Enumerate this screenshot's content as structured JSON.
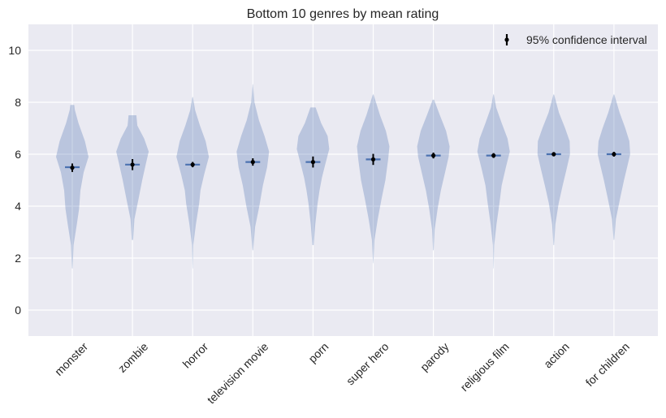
{
  "chart_data": {
    "type": "violin",
    "title": "Bottom 10 genres by mean rating",
    "xlabel": "",
    "ylabel": "",
    "ylim": [
      -1,
      11
    ],
    "yticks": [
      0,
      2,
      4,
      6,
      8,
      10
    ],
    "grid": true,
    "legend": {
      "placement": "top-right",
      "label": "95% confidence interval"
    },
    "colors": {
      "background": "#eaeaf2",
      "grid": "#ffffff",
      "violin": "#4c72b0",
      "median": "#4c72b0",
      "ci": "#000000"
    },
    "categories": [
      "monster",
      "zombie",
      "horror",
      "television movie",
      "porn",
      "super hero",
      "parody",
      "religious film",
      "action",
      "for children"
    ],
    "series": [
      {
        "category": "monster",
        "mean": 5.48,
        "ci": [
          5.38,
          5.58
        ],
        "median": 5.5,
        "min": 1.6,
        "max": 7.9,
        "density": [
          [
            1.6,
            0.02
          ],
          [
            2.5,
            0.08
          ],
          [
            3.3,
            0.28
          ],
          [
            3.9,
            0.42
          ],
          [
            4.6,
            0.5
          ],
          [
            5.3,
            0.7
          ],
          [
            5.9,
            1.0
          ],
          [
            6.5,
            0.78
          ],
          [
            7.2,
            0.38
          ],
          [
            7.7,
            0.16
          ],
          [
            7.9,
            0.12
          ]
        ]
      },
      {
        "category": "zombie",
        "mean": 5.6,
        "ci": [
          5.45,
          5.75
        ],
        "median": 5.6,
        "min": 2.7,
        "max": 7.5,
        "density": [
          [
            2.7,
            0.04
          ],
          [
            3.5,
            0.12
          ],
          [
            4.3,
            0.38
          ],
          [
            5.0,
            0.6
          ],
          [
            5.7,
            0.85
          ],
          [
            6.1,
            1.0
          ],
          [
            6.6,
            0.72
          ],
          [
            7.1,
            0.3
          ],
          [
            7.5,
            0.24
          ]
        ]
      },
      {
        "category": "horror",
        "mean": 5.6,
        "ci": [
          5.56,
          5.64
        ],
        "median": 5.6,
        "min": 1.6,
        "max": 8.2,
        "density": [
          [
            1.6,
            0.01
          ],
          [
            2.5,
            0.04
          ],
          [
            3.3,
            0.2
          ],
          [
            4.1,
            0.4
          ],
          [
            4.6,
            0.48
          ],
          [
            5.2,
            0.7
          ],
          [
            5.9,
            1.0
          ],
          [
            6.5,
            0.8
          ],
          [
            7.1,
            0.45
          ],
          [
            7.7,
            0.15
          ],
          [
            8.2,
            0.02
          ]
        ]
      },
      {
        "category": "television movie",
        "mean": 5.7,
        "ci": [
          5.62,
          5.78
        ],
        "median": 5.7,
        "min": 2.3,
        "max": 8.7,
        "density": [
          [
            2.3,
            0.02
          ],
          [
            3.2,
            0.14
          ],
          [
            4.0,
            0.4
          ],
          [
            4.8,
            0.62
          ],
          [
            5.5,
            0.88
          ],
          [
            6.1,
            1.0
          ],
          [
            6.7,
            0.72
          ],
          [
            7.3,
            0.38
          ],
          [
            8.0,
            0.1
          ],
          [
            8.7,
            0.01
          ]
        ]
      },
      {
        "category": "porn",
        "mean": 5.7,
        "ci": [
          5.55,
          5.85
        ],
        "median": 5.7,
        "min": 2.5,
        "max": 7.8,
        "density": [
          [
            2.5,
            0.04
          ],
          [
            3.3,
            0.14
          ],
          [
            4.1,
            0.28
          ],
          [
            4.6,
            0.4
          ],
          [
            5.1,
            0.55
          ],
          [
            5.6,
            0.75
          ],
          [
            6.2,
            1.0
          ],
          [
            6.7,
            0.9
          ],
          [
            7.2,
            0.5
          ],
          [
            7.8,
            0.16
          ]
        ]
      },
      {
        "category": "super hero",
        "mean": 5.8,
        "ci": [
          5.65,
          5.95
        ],
        "median": 5.8,
        "min": 1.8,
        "max": 8.3,
        "density": [
          [
            1.8,
            0.01
          ],
          [
            2.7,
            0.08
          ],
          [
            3.5,
            0.28
          ],
          [
            4.3,
            0.52
          ],
          [
            5.0,
            0.75
          ],
          [
            5.8,
            0.92
          ],
          [
            6.3,
            1.0
          ],
          [
            6.9,
            0.78
          ],
          [
            7.5,
            0.42
          ],
          [
            8.3,
            0.02
          ]
        ]
      },
      {
        "category": "parody",
        "mean": 5.95,
        "ci": [
          5.9,
          6.0
        ],
        "median": 5.95,
        "min": 2.3,
        "max": 8.1,
        "density": [
          [
            2.3,
            0.02
          ],
          [
            3.1,
            0.08
          ],
          [
            3.9,
            0.26
          ],
          [
            4.6,
            0.46
          ],
          [
            5.3,
            0.72
          ],
          [
            5.9,
            0.94
          ],
          [
            6.3,
            1.0
          ],
          [
            6.9,
            0.78
          ],
          [
            7.5,
            0.4
          ],
          [
            8.1,
            0.04
          ]
        ]
      },
      {
        "category": "religious film",
        "mean": 5.95,
        "ci": [
          5.92,
          5.98
        ],
        "median": 5.95,
        "min": 1.6,
        "max": 8.3,
        "density": [
          [
            1.6,
            0.01
          ],
          [
            2.5,
            0.04
          ],
          [
            3.3,
            0.18
          ],
          [
            4.1,
            0.36
          ],
          [
            4.8,
            0.5
          ],
          [
            5.5,
            0.76
          ],
          [
            6.1,
            1.0
          ],
          [
            6.6,
            0.86
          ],
          [
            7.2,
            0.5
          ],
          [
            7.8,
            0.16
          ],
          [
            8.3,
            0.02
          ]
        ]
      },
      {
        "category": "action",
        "mean": 6.0,
        "ci": [
          5.98,
          6.02
        ],
        "median": 6.0,
        "min": 2.5,
        "max": 8.3,
        "density": [
          [
            2.5,
            0.02
          ],
          [
            3.3,
            0.1
          ],
          [
            4.1,
            0.3
          ],
          [
            4.8,
            0.55
          ],
          [
            5.4,
            0.78
          ],
          [
            6.0,
            1.0
          ],
          [
            6.5,
            0.98
          ],
          [
            7.0,
            0.7
          ],
          [
            7.6,
            0.32
          ],
          [
            8.3,
            0.02
          ]
        ]
      },
      {
        "category": "for children",
        "mean": 6.0,
        "ci": [
          5.97,
          6.03
        ],
        "median": 6.0,
        "min": 2.7,
        "max": 8.3,
        "density": [
          [
            2.7,
            0.02
          ],
          [
            3.5,
            0.12
          ],
          [
            4.3,
            0.38
          ],
          [
            5.0,
            0.62
          ],
          [
            5.6,
            0.85
          ],
          [
            6.0,
            1.0
          ],
          [
            6.5,
            0.95
          ],
          [
            7.0,
            0.7
          ],
          [
            7.6,
            0.35
          ],
          [
            8.3,
            0.02
          ]
        ]
      }
    ]
  }
}
